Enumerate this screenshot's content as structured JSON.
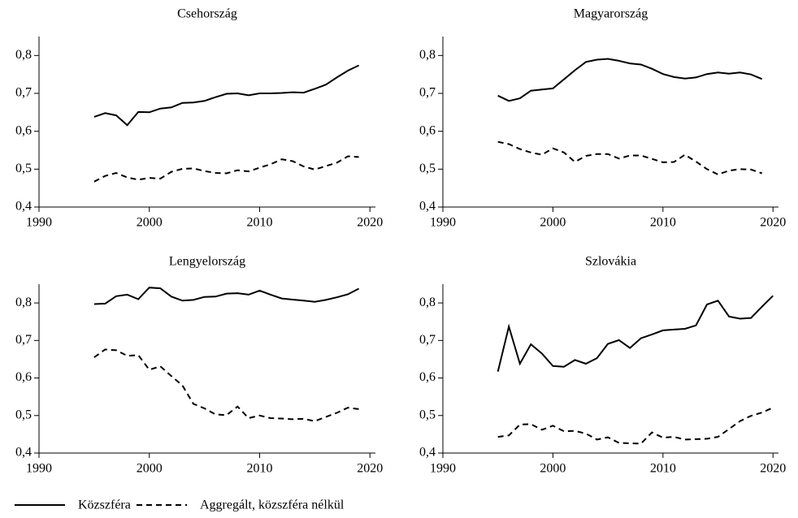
{
  "chart_data": [
    {
      "type": "line",
      "title": "Csehország",
      "x": [
        1995,
        1996,
        1997,
        1998,
        1999,
        2000,
        2001,
        2002,
        2003,
        2004,
        2005,
        2006,
        2007,
        2008,
        2009,
        2010,
        2011,
        2012,
        2013,
        2014,
        2015,
        2016,
        2017,
        2018,
        2019
      ],
      "series": [
        {
          "name": "Közszféra",
          "color": "#000000",
          "dashed": false,
          "values": [
            0.638,
            0.648,
            0.642,
            0.616,
            0.651,
            0.65,
            0.66,
            0.663,
            0.675,
            0.676,
            0.68,
            0.69,
            0.699,
            0.7,
            0.695,
            0.7,
            0.7,
            0.701,
            0.703,
            0.702,
            0.712,
            0.723,
            0.742,
            0.76,
            0.774
          ]
        },
        {
          "name": "Aggregált, közszféra nélkül",
          "color": "#000000",
          "dashed": true,
          "values": [
            0.467,
            0.482,
            0.49,
            0.478,
            0.472,
            0.477,
            0.475,
            0.493,
            0.501,
            0.502,
            0.495,
            0.49,
            0.489,
            0.497,
            0.494,
            0.504,
            0.513,
            0.526,
            0.521,
            0.507,
            0.499,
            0.508,
            0.517,
            0.534,
            0.532
          ]
        }
      ],
      "xlim": [
        1990,
        2020.5
      ],
      "xticks": [
        1990,
        2000,
        2010,
        2020
      ],
      "ylim": [
        0.4,
        0.85
      ],
      "yticks": [
        {
          "value": 0.4,
          "label": "0,4"
        },
        {
          "value": 0.5,
          "label": "0,5"
        },
        {
          "value": 0.6,
          "label": "0,6"
        },
        {
          "value": 0.7,
          "label": "0,7"
        },
        {
          "value": 0.8,
          "label": "0,8"
        }
      ]
    },
    {
      "type": "line",
      "title": "Magyarország",
      "x": [
        1995,
        1996,
        1997,
        1998,
        1999,
        2000,
        2001,
        2002,
        2003,
        2004,
        2005,
        2006,
        2007,
        2008,
        2009,
        2010,
        2011,
        2012,
        2013,
        2014,
        2015,
        2016,
        2017,
        2018,
        2019
      ],
      "series": [
        {
          "color": "#000000",
          "dashed": false,
          "values": [
            0.694,
            0.68,
            0.687,
            0.707,
            0.71,
            0.713,
            0.737,
            0.761,
            0.783,
            0.789,
            0.791,
            0.786,
            0.779,
            0.776,
            0.765,
            0.751,
            0.743,
            0.739,
            0.742,
            0.751,
            0.755,
            0.752,
            0.755,
            0.75,
            0.738
          ]
        },
        {
          "color": "#000000",
          "dashed": true,
          "values": [
            0.572,
            0.566,
            0.553,
            0.544,
            0.538,
            0.555,
            0.544,
            0.519,
            0.535,
            0.54,
            0.54,
            0.528,
            0.536,
            0.536,
            0.527,
            0.518,
            0.519,
            0.538,
            0.52,
            0.5,
            0.486,
            0.496,
            0.5,
            0.499,
            0.489
          ]
        }
      ],
      "xlim": [
        1990,
        2020.5
      ],
      "xticks": [
        1990,
        2000,
        2010,
        2020
      ],
      "ylim": [
        0.4,
        0.85
      ],
      "yticks": [
        {
          "value": 0.4,
          "label": "0,4"
        },
        {
          "value": 0.5,
          "label": "0,5"
        },
        {
          "value": 0.6,
          "label": "0,6"
        },
        {
          "value": 0.7,
          "label": "0,7"
        },
        {
          "value": 0.8,
          "label": "0,8"
        }
      ]
    },
    {
      "type": "line",
      "title": "Lengyelország",
      "x": [
        1995,
        1996,
        1997,
        1998,
        1999,
        2000,
        2001,
        2002,
        2003,
        2004,
        2005,
        2006,
        2007,
        2008,
        2009,
        2010,
        2011,
        2012,
        2013,
        2014,
        2015,
        2016,
        2017,
        2018,
        2019
      ],
      "series": [
        {
          "color": "#000000",
          "dashed": false,
          "values": [
            0.797,
            0.798,
            0.818,
            0.822,
            0.81,
            0.841,
            0.839,
            0.817,
            0.806,
            0.808,
            0.816,
            0.817,
            0.825,
            0.826,
            0.822,
            0.833,
            0.822,
            0.812,
            0.809,
            0.806,
            0.803,
            0.808,
            0.815,
            0.823,
            0.838
          ]
        },
        {
          "color": "#000000",
          "dashed": true,
          "values": [
            0.655,
            0.676,
            0.674,
            0.659,
            0.661,
            0.622,
            0.631,
            0.605,
            0.58,
            0.531,
            0.519,
            0.503,
            0.501,
            0.524,
            0.493,
            0.5,
            0.493,
            0.492,
            0.49,
            0.491,
            0.485,
            0.496,
            0.507,
            0.521,
            0.517
          ]
        }
      ],
      "xlim": [
        1990,
        2020.5
      ],
      "xticks": [
        1990,
        2000,
        2010,
        2020
      ],
      "ylim": [
        0.4,
        0.85
      ],
      "yticks": [
        {
          "value": 0.4,
          "label": "0,4"
        },
        {
          "value": 0.5,
          "label": "0,5"
        },
        {
          "value": 0.6,
          "label": "0,6"
        },
        {
          "value": 0.7,
          "label": "0,7"
        },
        {
          "value": 0.8,
          "label": "0,8"
        }
      ]
    },
    {
      "type": "line",
      "title": "Szlovákia",
      "x": [
        1995,
        1996,
        1997,
        1998,
        1999,
        2000,
        2001,
        2002,
        2003,
        2004,
        2005,
        2006,
        2007,
        2008,
        2009,
        2010,
        2011,
        2012,
        2013,
        2014,
        2015,
        2016,
        2017,
        2018,
        2019,
        2020
      ],
      "series": [
        {
          "color": "#000000",
          "dashed": false,
          "values": [
            0.617,
            0.737,
            0.638,
            0.69,
            0.665,
            0.632,
            0.63,
            0.648,
            0.638,
            0.653,
            0.691,
            0.701,
            0.68,
            0.706,
            0.716,
            0.727,
            0.729,
            0.731,
            0.74,
            0.796,
            0.806,
            0.764,
            0.758,
            0.76,
            0.79,
            0.819
          ]
        },
        {
          "color": "#000000",
          "dashed": true,
          "values": [
            0.443,
            0.447,
            0.476,
            0.477,
            0.462,
            0.473,
            0.458,
            0.459,
            0.452,
            0.436,
            0.442,
            0.427,
            0.426,
            0.425,
            0.455,
            0.441,
            0.443,
            0.436,
            0.437,
            0.438,
            0.443,
            0.464,
            0.485,
            0.499,
            0.508,
            0.521
          ]
        }
      ],
      "xlim": [
        1990,
        2020.5
      ],
      "xticks": [
        1990,
        2000,
        2010,
        2020
      ],
      "ylim": [
        0.4,
        0.85
      ],
      "yticks": [
        {
          "value": 0.4,
          "label": "0,4"
        },
        {
          "value": 0.5,
          "label": "0,5"
        },
        {
          "value": 0.6,
          "label": "0,6"
        },
        {
          "value": 0.7,
          "label": "0,7"
        },
        {
          "value": 0.8,
          "label": "0,8"
        }
      ]
    }
  ]
}
